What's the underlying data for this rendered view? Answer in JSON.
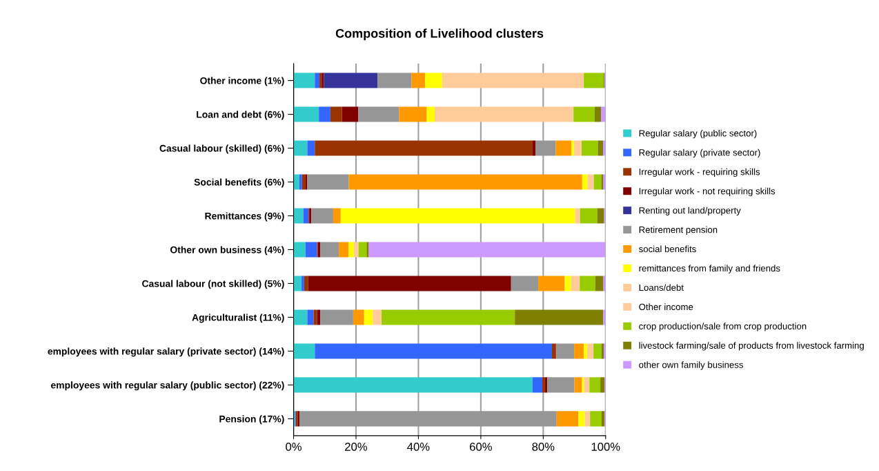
{
  "chart_data": {
    "type": "bar",
    "orientation": "horizontal",
    "stacked": true,
    "title": "Composition of Livelihood clusters",
    "categories": [
      "Other income (1%)",
      "Loan and debt (6%)",
      "Casual labour (skilled) (6%)",
      "Social benefits (6%)",
      "Remittances (9%)",
      "Other own business (4%)",
      "Casual labour (not skilled) (5%)",
      "Agriculturalist (11%)",
      "employees with regular salary (private sector) (14%)",
      "employees with regular salary (public sector) (22%)",
      "Pension (17%)"
    ],
    "series": [
      {
        "name": "Regular salary (public sector)",
        "color": "#33cccc",
        "values": [
          6.8,
          8.1,
          4.4,
          1.8,
          3.1,
          3.8,
          2.5,
          4.4,
          6.8,
          76.6,
          0.4
        ]
      },
      {
        "name": "Regular salary (private sector)",
        "color": "#3366ff",
        "values": [
          1.5,
          3.7,
          2.4,
          0.9,
          1.7,
          3.7,
          0.9,
          2.0,
          76.0,
          3.1,
          0.3
        ]
      },
      {
        "name": "Irregular work - requiring skills",
        "color": "#993300",
        "values": [
          0.7,
          3.7,
          69.8,
          1.0,
          0.2,
          0.2,
          1.3,
          1.1,
          1.2,
          0.9,
          0.7
        ]
      },
      {
        "name": "Irregular work - not requiring skills",
        "color": "#800000",
        "values": [
          0.7,
          5.2,
          0.9,
          0.7,
          0.7,
          0.9,
          65.0,
          1.1,
          0.2,
          0.7,
          0.5
        ]
      },
      {
        "name": "Renting out land/property",
        "color": "#333399",
        "values": [
          17.2,
          0,
          0,
          0,
          0,
          0,
          0,
          0,
          0,
          0,
          0
        ]
      },
      {
        "name": "Retirement pension",
        "color": "#969696",
        "values": [
          10.9,
          13.1,
          6.5,
          13.3,
          7.0,
          5.9,
          8.7,
          10.5,
          5.7,
          8.7,
          82.4
        ]
      },
      {
        "name": "social benefits",
        "color": "#ff9900",
        "values": [
          4.4,
          8.9,
          5.0,
          74.8,
          2.4,
          3.1,
          8.5,
          3.5,
          3.1,
          2.4,
          7.0
        ]
      },
      {
        "name": "remittances from family and friends",
        "color": "#ffff00",
        "values": [
          5.4,
          2.5,
          0.8,
          1.7,
          75.1,
          1.7,
          2.0,
          2.8,
          1.1,
          0.7,
          2.0
        ]
      },
      {
        "name": "Loans/debt",
        "color": "#ffcc99",
        "values": [
          0,
          44.5,
          2.5,
          2.0,
          1.6,
          1.5,
          2.8,
          2.8,
          2.0,
          1.7,
          1.7
        ]
      },
      {
        "name": "Other income",
        "color": "#ffcc99",
        "values": [
          45.4,
          0,
          0,
          0,
          0,
          0,
          0,
          0,
          0,
          0,
          0
        ]
      },
      {
        "name": "crop production/sale from crop production",
        "color": "#99cc00",
        "values": [
          6.4,
          6.8,
          5.2,
          2.4,
          5.5,
          2.6,
          5.0,
          42.7,
          2.6,
          3.5,
          3.7
        ]
      },
      {
        "name": "livestock farming/sale of products from livestock farming",
        "color": "#808000",
        "values": [
          0.2,
          2.0,
          1.7,
          0.7,
          2.2,
          0.7,
          2.6,
          28.3,
          0.7,
          1.3,
          0.9
        ]
      },
      {
        "name": "other own family business",
        "color": "#cc99ff",
        "values": [
          0.4,
          1.4,
          0.7,
          0.7,
          0.4,
          75.9,
          0.7,
          0.7,
          0.7,
          0.4,
          0.4
        ]
      }
    ],
    "xlim": [
      0,
      100
    ],
    "xticks": [
      {
        "value": 0,
        "label": "0%"
      },
      {
        "value": 20,
        "label": "20%"
      },
      {
        "value": 40,
        "label": "40%"
      },
      {
        "value": 60,
        "label": "60%"
      },
      {
        "value": 80,
        "label": "80%"
      },
      {
        "value": 100,
        "label": "100%"
      }
    ],
    "grid": "x",
    "legend": "right"
  }
}
